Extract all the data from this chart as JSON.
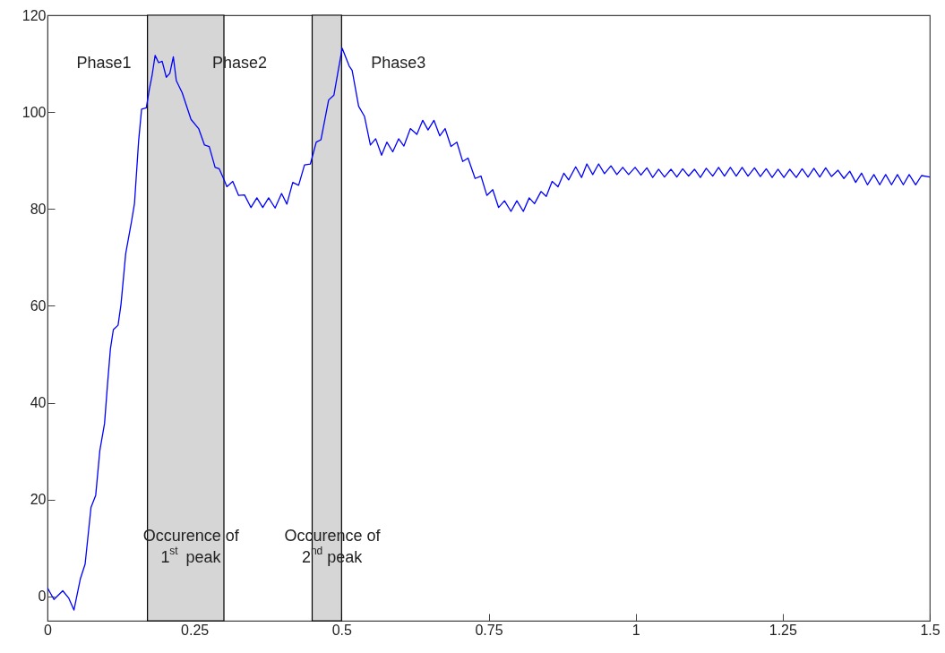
{
  "chart_data": {
    "type": "line",
    "xlim": [
      0,
      1.5
    ],
    "xticks": [
      0,
      0.25,
      0.5,
      0.75,
      1,
      1.25,
      1.5
    ],
    "ylim": [
      -5,
      120
    ],
    "yticks": [
      0,
      20,
      40,
      60,
      80,
      100,
      120
    ],
    "grid": false,
    "marker": "none",
    "line_style": "solid",
    "series": [
      {
        "color": "#0000ff",
        "x": [
          0,
          0.011,
          0.026,
          0.036,
          0.045,
          0.056,
          0.064,
          0.074,
          0.082,
          0.089,
          0.097,
          0.102,
          0.107,
          0.112,
          0.12,
          0.125,
          0.133,
          0.143,
          0.148,
          0.155,
          0.16,
          0.168,
          0.173,
          0.178,
          0.183,
          0.189,
          0.195,
          0.202,
          0.208,
          0.214,
          0.219,
          0.229,
          0.244,
          0.257,
          0.267,
          0.275,
          0.285,
          0.292,
          0.3,
          0.305,
          0.315,
          0.325,
          0.335,
          0.346,
          0.356,
          0.366,
          0.376,
          0.387,
          0.398,
          0.407,
          0.417,
          0.427,
          0.437,
          0.447,
          0.457,
          0.465,
          0.478,
          0.487,
          0.493,
          0.501,
          0.513,
          0.518,
          0.529,
          0.539,
          0.549,
          0.558,
          0.568,
          0.577,
          0.587,
          0.597,
          0.606,
          0.617,
          0.628,
          0.638,
          0.647,
          0.657,
          0.667,
          0.676,
          0.686,
          0.696,
          0.706,
          0.715,
          0.727,
          0.737,
          0.747,
          0.757,
          0.767,
          0.777,
          0.788,
          0.798,
          0.809,
          0.819,
          0.828,
          0.839,
          0.848,
          0.858,
          0.868,
          0.878,
          0.886,
          0.898,
          0.908,
          0.917,
          0.927,
          0.937,
          0.947,
          0.958,
          0.968,
          0.978,
          0.988,
          0.999,
          1.009,
          1.019,
          1.029,
          1.039,
          1.049,
          1.06,
          1.07,
          1.08,
          1.09,
          1.1,
          1.11,
          1.12,
          1.131,
          1.141,
          1.151,
          1.161,
          1.171,
          1.181,
          1.191,
          1.202,
          1.212,
          1.222,
          1.232,
          1.242,
          1.252,
          1.262,
          1.273,
          1.283,
          1.293,
          1.303,
          1.313,
          1.323,
          1.333,
          1.344,
          1.354,
          1.364,
          1.374,
          1.384,
          1.394,
          1.405,
          1.415,
          1.425,
          1.435,
          1.445,
          1.455,
          1.465,
          1.476,
          1.486,
          1.5
        ],
        "values": [
          1.8,
          -0.6,
          1.2,
          -0.3,
          -2.8,
          3.7,
          6.7,
          18.4,
          20.9,
          30.1,
          35.7,
          43.7,
          51.1,
          55.1,
          56,
          60.3,
          70.8,
          77.5,
          81.2,
          94.1,
          100.6,
          100.9,
          104.6,
          107.7,
          111.7,
          110.2,
          110.5,
          107.2,
          108,
          111.4,
          106.5,
          104,
          98.5,
          96.6,
          93.2,
          92.9,
          88.6,
          88.3,
          86.1,
          84.6,
          85.7,
          82.8,
          82.9,
          80.3,
          82.3,
          80.3,
          82.3,
          80.2,
          83.2,
          81,
          85.5,
          84.9,
          89.1,
          89.3,
          93.8,
          94.3,
          102.5,
          103.5,
          107.7,
          113.2,
          109.5,
          108.6,
          101.2,
          99.1,
          93.2,
          94.5,
          91.1,
          93.8,
          91.8,
          94.5,
          93,
          96.6,
          95.4,
          98.3,
          96.3,
          98.3,
          95.1,
          96.6,
          92.9,
          93.8,
          89.8,
          90.5,
          86.3,
          86.8,
          82.8,
          84,
          80.3,
          81.7,
          79.5,
          81.7,
          79.5,
          82.3,
          81.1,
          83.6,
          82.6,
          85.7,
          84.6,
          87.4,
          86,
          88.7,
          86.5,
          89.3,
          87.1,
          89.3,
          87.3,
          88.9,
          87.1,
          88.6,
          87.1,
          88.6,
          87,
          88.5,
          86.5,
          88.2,
          86.6,
          88.2,
          86.6,
          88.3,
          86.8,
          88.2,
          86.5,
          88.4,
          86.8,
          88.6,
          86.8,
          88.6,
          86.8,
          88.6,
          86.8,
          88.5,
          86.7,
          88.3,
          86.5,
          88.2,
          86.5,
          88.2,
          86.5,
          88.3,
          86.6,
          88.4,
          86.6,
          88.5,
          86.7,
          88,
          86.3,
          87.8,
          85.5,
          87.4,
          85,
          87.1,
          85,
          87.1,
          85,
          87.1,
          85,
          87.1,
          85,
          86.9,
          86.6
        ]
      }
    ],
    "bands": [
      {
        "axis": "x",
        "from": 0.17,
        "to": 0.3,
        "color": "#d6d6d6",
        "label": "Occurence of 1$^{st}$ peak"
      },
      {
        "axis": "x",
        "from": 0.45,
        "to": 0.5,
        "color": "#d6d6d6",
        "label": "Occurence of 2$^{nd}$ peak"
      }
    ],
    "annotations": [
      "Phase1",
      "Phase2",
      "Phase3"
    ]
  }
}
